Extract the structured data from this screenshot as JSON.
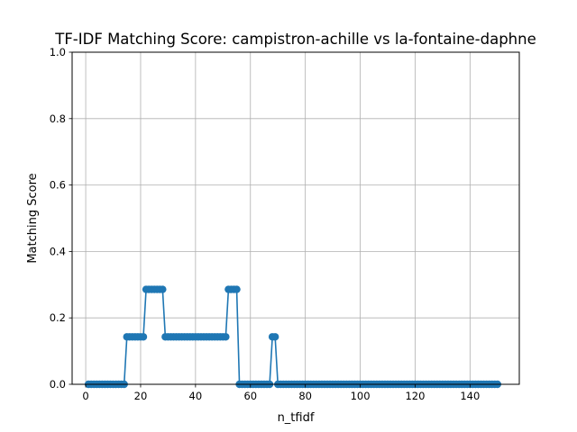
{
  "chart_data": {
    "type": "line",
    "title": "TF-IDF Matching Score: campistron-achille vs la-fontaine-daphne",
    "xlabel": "n_tfidf",
    "ylabel": "Matching Score",
    "xlim": [
      -4.95,
      157.95
    ],
    "ylim": [
      0,
      1
    ],
    "xticks": [
      0,
      20,
      40,
      60,
      80,
      100,
      120,
      140
    ],
    "yticks": [
      0.0,
      0.2,
      0.4,
      0.6,
      0.8,
      1.0
    ],
    "yticklabels": [
      "0.0",
      "0.2",
      "0.4",
      "0.6",
      "0.8",
      "1.0"
    ],
    "grid": true,
    "color": "#1f77b4",
    "segments": [
      {
        "from": 1,
        "to": 14,
        "value": 0.0
      },
      {
        "from": 15,
        "to": 21,
        "value": 0.1429
      },
      {
        "from": 22,
        "to": 28,
        "value": 0.2857
      },
      {
        "from": 29,
        "to": 51,
        "value": 0.1429
      },
      {
        "from": 52,
        "to": 55,
        "value": 0.2857
      },
      {
        "from": 56,
        "to": 67,
        "value": 0.0
      },
      {
        "from": 68,
        "to": 69,
        "value": 0.1429
      },
      {
        "from": 70,
        "to": 150,
        "value": 0.0
      }
    ]
  }
}
